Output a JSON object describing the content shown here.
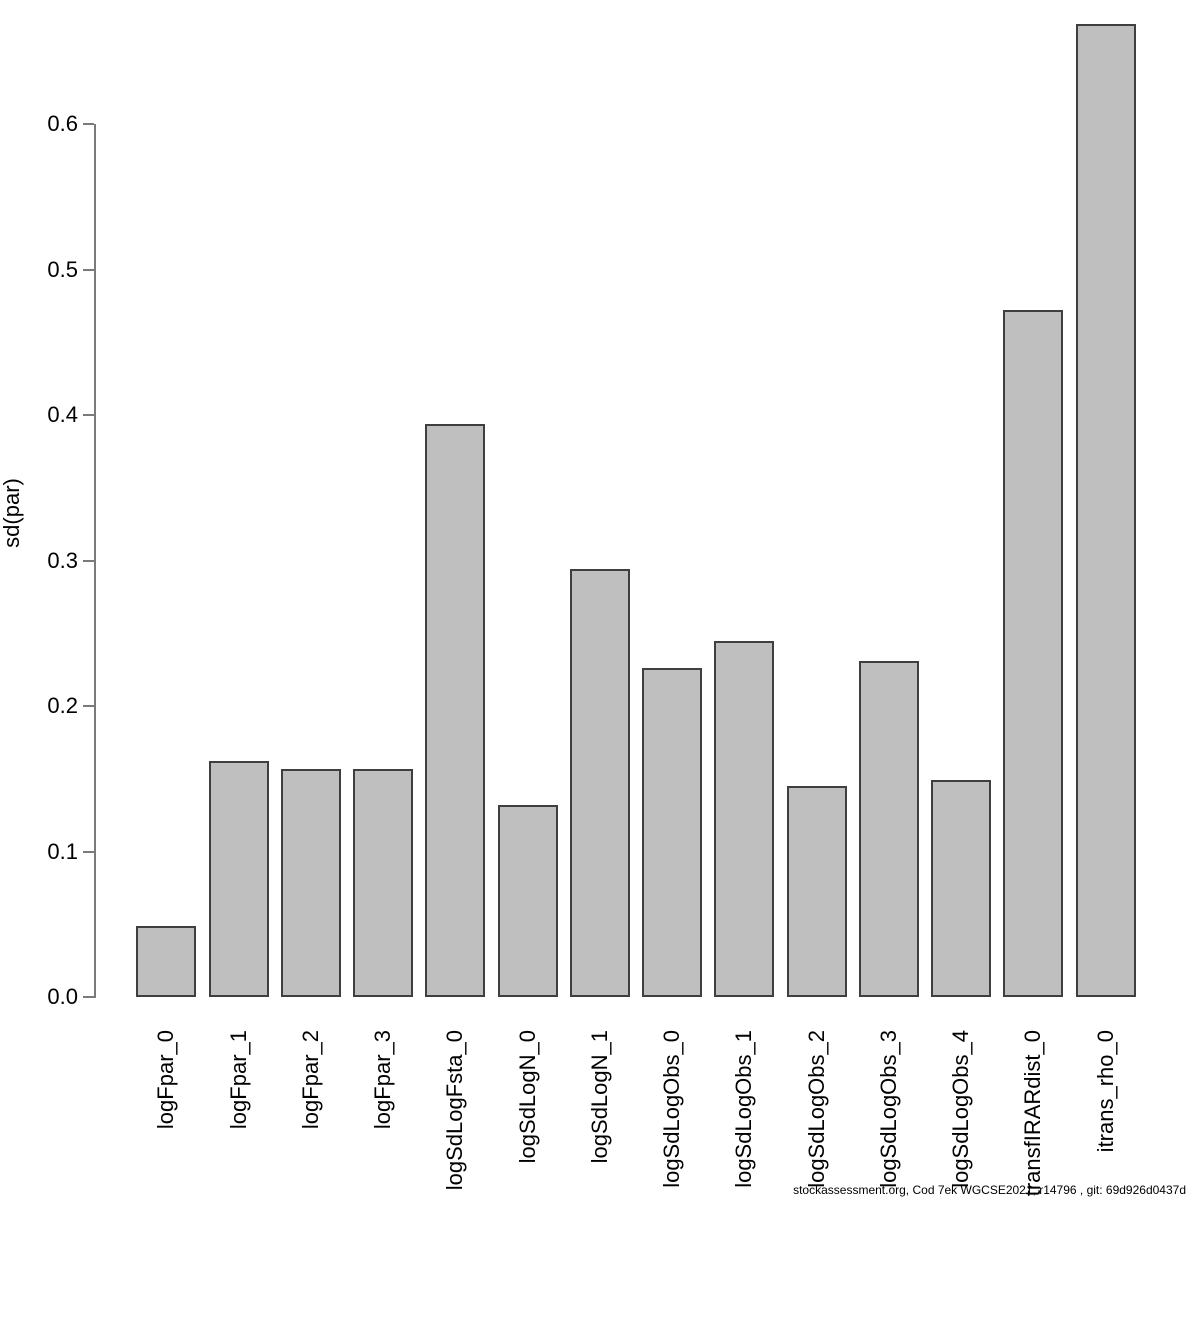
{
  "chart_data": {
    "type": "bar",
    "title": "",
    "xlabel": "",
    "ylabel": "sd(par)",
    "categories": [
      "logFpar_0",
      "logFpar_1",
      "logFpar_2",
      "logFpar_3",
      "logSdLogFsta_0",
      "logSdLogN_0",
      "logSdLogN_1",
      "logSdLogObs_0",
      "logSdLogObs_1",
      "logSdLogObs_2",
      "logSdLogObs_3",
      "logSdLogObs_4",
      "transfIRARdist_0",
      "itrans_rho_0"
    ],
    "values": [
      0.049,
      0.162,
      0.157,
      0.157,
      0.394,
      0.132,
      0.294,
      0.226,
      0.245,
      0.145,
      0.231,
      0.149,
      0.472,
      0.669
    ],
    "yticks": [
      "0.0",
      "0.1",
      "0.2",
      "0.3",
      "0.4",
      "0.5",
      "0.6"
    ],
    "ylim": [
      0.0,
      0.67
    ],
    "grid": false,
    "legend": false,
    "bar_fill": "#bfbfbf",
    "bar_border": "#3f3f3f",
    "axis_color": "#7a7a7a",
    "text_color": "#000000",
    "background": "#ffffff"
  },
  "footer": {
    "text": "stockassessment.org, Cod 7ek WGCSE2021, r14796 , git: 69d926d0437d"
  }
}
